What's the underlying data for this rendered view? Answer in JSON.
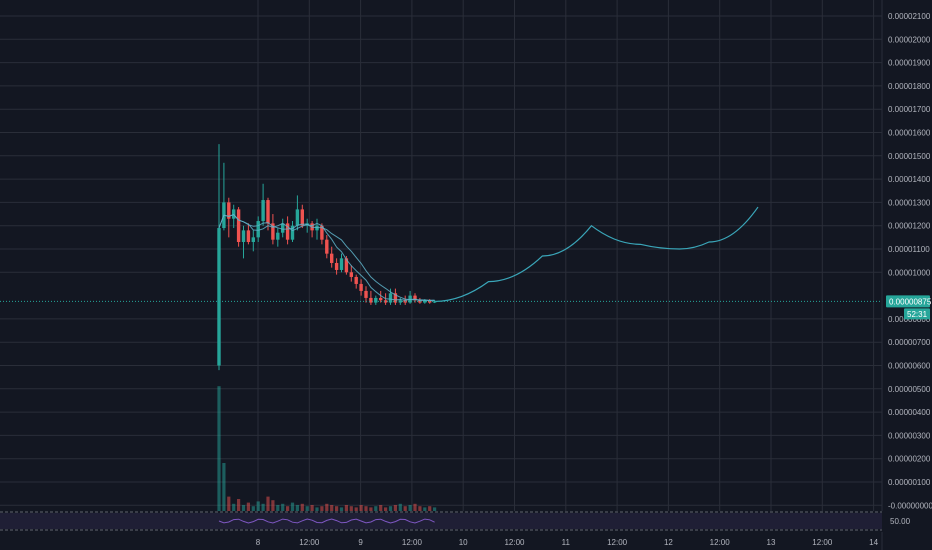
{
  "chart_data": {
    "type": "candlestick",
    "y_axis": {
      "range": [
        -0.0,
        2.1e-06
      ],
      "ticks": [
        "0.00002100",
        "0.00002000",
        "0.00001900",
        "0.00001800",
        "0.00001700",
        "0.00001600",
        "0.00001500",
        "0.00001400",
        "0.00001300",
        "0.00001200",
        "0.00001100",
        "0.00001000",
        "0.00000800",
        "0.00000700",
        "0.00000600",
        "0.00000500",
        "0.00000400",
        "0.00000300",
        "0.00000200",
        "0.00000100",
        "-0.00000000"
      ],
      "tick_values": [
        2100,
        2000,
        1900,
        1800,
        1700,
        1600,
        1500,
        1400,
        1300,
        1200,
        1100,
        1000,
        800,
        700,
        600,
        500,
        400,
        300,
        200,
        100,
        0
      ]
    },
    "x_axis": {
      "ticks": [
        "8",
        "12:00",
        "9",
        "12:00",
        "10",
        "12:00",
        "11",
        "12:00",
        "12",
        "12:00",
        "13",
        "12:00",
        "14"
      ]
    },
    "last_price": {
      "label": "0.00000875",
      "value": 875,
      "countdown": "52:31",
      "color": "#26a69a"
    },
    "indicator_pane": {
      "level_label": "50.00"
    },
    "colors": {
      "up": "#26a69a",
      "down": "#ef5350",
      "ma": "#5fb3c9",
      "projection": "#3aa6b9",
      "grid": "#2a2e39",
      "background": "#131722",
      "rsi": "#7e57c2"
    },
    "candles": [
      {
        "o": 600,
        "h": 1550,
        "l": 580,
        "c": 1190
      },
      {
        "o": 1190,
        "h": 1470,
        "l": 1180,
        "c": 1300
      },
      {
        "o": 1300,
        "h": 1320,
        "l": 1150,
        "c": 1230
      },
      {
        "o": 1230,
        "h": 1290,
        "l": 1190,
        "c": 1270
      },
      {
        "o": 1270,
        "h": 1280,
        "l": 1110,
        "c": 1130
      },
      {
        "o": 1130,
        "h": 1200,
        "l": 1060,
        "c": 1180
      },
      {
        "o": 1180,
        "h": 1210,
        "l": 1120,
        "c": 1130
      },
      {
        "o": 1130,
        "h": 1180,
        "l": 1090,
        "c": 1150
      },
      {
        "o": 1150,
        "h": 1240,
        "l": 1130,
        "c": 1220
      },
      {
        "o": 1220,
        "h": 1380,
        "l": 1200,
        "c": 1310
      },
      {
        "o": 1310,
        "h": 1320,
        "l": 1180,
        "c": 1210
      },
      {
        "o": 1210,
        "h": 1250,
        "l": 1120,
        "c": 1140
      },
      {
        "o": 1140,
        "h": 1190,
        "l": 1110,
        "c": 1170
      },
      {
        "o": 1170,
        "h": 1230,
        "l": 1150,
        "c": 1210
      },
      {
        "o": 1210,
        "h": 1240,
        "l": 1120,
        "c": 1140
      },
      {
        "o": 1140,
        "h": 1220,
        "l": 1130,
        "c": 1200
      },
      {
        "o": 1200,
        "h": 1330,
        "l": 1180,
        "c": 1270
      },
      {
        "o": 1270,
        "h": 1290,
        "l": 1190,
        "c": 1200
      },
      {
        "o": 1200,
        "h": 1230,
        "l": 1170,
        "c": 1210
      },
      {
        "o": 1210,
        "h": 1220,
        "l": 1150,
        "c": 1180
      },
      {
        "o": 1180,
        "h": 1230,
        "l": 1140,
        "c": 1200
      },
      {
        "o": 1200,
        "h": 1210,
        "l": 1120,
        "c": 1140
      },
      {
        "o": 1140,
        "h": 1160,
        "l": 1060,
        "c": 1080
      },
      {
        "o": 1080,
        "h": 1110,
        "l": 1020,
        "c": 1040
      },
      {
        "o": 1040,
        "h": 1060,
        "l": 990,
        "c": 1010
      },
      {
        "o": 1010,
        "h": 1080,
        "l": 1000,
        "c": 1060
      },
      {
        "o": 1060,
        "h": 1070,
        "l": 990,
        "c": 1000
      },
      {
        "o": 1000,
        "h": 1030,
        "l": 960,
        "c": 980
      },
      {
        "o": 980,
        "h": 990,
        "l": 930,
        "c": 950
      },
      {
        "o": 950,
        "h": 970,
        "l": 900,
        "c": 920
      },
      {
        "o": 920,
        "h": 940,
        "l": 870,
        "c": 890
      },
      {
        "o": 890,
        "h": 920,
        "l": 860,
        "c": 870
      },
      {
        "o": 870,
        "h": 900,
        "l": 860,
        "c": 890
      },
      {
        "o": 890,
        "h": 920,
        "l": 870,
        "c": 880
      },
      {
        "o": 880,
        "h": 910,
        "l": 860,
        "c": 870
      },
      {
        "o": 870,
        "h": 930,
        "l": 860,
        "c": 910
      },
      {
        "o": 910,
        "h": 930,
        "l": 860,
        "c": 870
      },
      {
        "o": 870,
        "h": 890,
        "l": 860,
        "c": 880
      },
      {
        "o": 880,
        "h": 900,
        "l": 860,
        "c": 870
      },
      {
        "o": 870,
        "h": 920,
        "l": 865,
        "c": 900
      },
      {
        "o": 900,
        "h": 910,
        "l": 870,
        "c": 880
      },
      {
        "o": 880,
        "h": 890,
        "l": 865,
        "c": 870
      },
      {
        "o": 870,
        "h": 885,
        "l": 865,
        "c": 880
      },
      {
        "o": 880,
        "h": 885,
        "l": 865,
        "c": 870
      },
      {
        "o": 870,
        "h": 880,
        "l": 868,
        "c": 875
      }
    ],
    "volumes": [
      520,
      200,
      60,
      30,
      50,
      25,
      35,
      20,
      40,
      30,
      60,
      45,
      25,
      30,
      20,
      35,
      25,
      30,
      20,
      25,
      15,
      20,
      30,
      25,
      20,
      15,
      25,
      20,
      15,
      25,
      20,
      15,
      20,
      25,
      15,
      20,
      25,
      30,
      20,
      25,
      30,
      20,
      15,
      20,
      15
    ],
    "projection": [
      [
        44,
        875
      ],
      [
        55,
        960
      ],
      [
        66,
        1070
      ],
      [
        76,
        1200
      ],
      [
        86,
        1120
      ],
      [
        94,
        1100
      ],
      [
        100,
        1130
      ],
      [
        110,
        1280
      ]
    ]
  }
}
